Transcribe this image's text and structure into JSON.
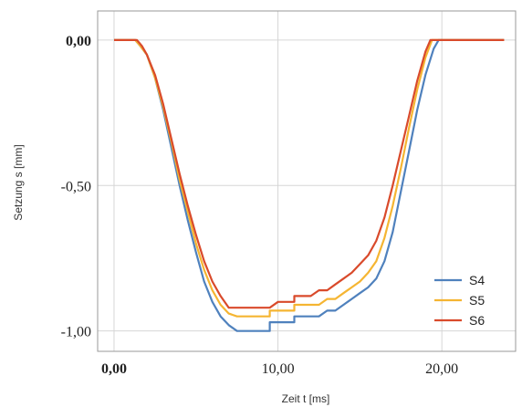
{
  "chart_data": {
    "type": "line",
    "xlabel": "Zeit t [ms]",
    "ylabel": "Setzung s [mm]",
    "xlim": [
      -1,
      24.5
    ],
    "ylim": [
      -1.07,
      0.1
    ],
    "x_ticks": [
      {
        "value": 0,
        "label": "0,00",
        "bold": true
      },
      {
        "value": 10,
        "label": "10,00",
        "bold": false
      },
      {
        "value": 20,
        "label": "20,00",
        "bold": false
      }
    ],
    "y_ticks": [
      {
        "value": 0,
        "label": "0,00",
        "bold": true
      },
      {
        "value": -0.5,
        "label": "-0,50",
        "bold": false
      },
      {
        "value": -1.0,
        "label": "-1,00",
        "bold": false
      }
    ],
    "grid": true,
    "legend_position": "bottom-right",
    "series": [
      {
        "name": "S4",
        "color": "#4f81bd",
        "points": [
          [
            0,
            0
          ],
          [
            1.3,
            0
          ],
          [
            1.6,
            -0.02
          ],
          [
            2.0,
            -0.05
          ],
          [
            2.5,
            -0.13
          ],
          [
            3.0,
            -0.24
          ],
          [
            3.5,
            -0.37
          ],
          [
            4.0,
            -0.5
          ],
          [
            4.5,
            -0.62
          ],
          [
            5.0,
            -0.73
          ],
          [
            5.5,
            -0.83
          ],
          [
            6.0,
            -0.9
          ],
          [
            6.5,
            -0.95
          ],
          [
            7.0,
            -0.98
          ],
          [
            7.5,
            -1.0
          ],
          [
            9.5,
            -1.0
          ],
          [
            9.5,
            -0.97
          ],
          [
            11.0,
            -0.97
          ],
          [
            11.0,
            -0.95
          ],
          [
            12.5,
            -0.95
          ],
          [
            13.0,
            -0.93
          ],
          [
            13.5,
            -0.93
          ],
          [
            14.0,
            -0.91
          ],
          [
            14.5,
            -0.89
          ],
          [
            15.0,
            -0.87
          ],
          [
            15.5,
            -0.85
          ],
          [
            16.0,
            -0.82
          ],
          [
            16.5,
            -0.76
          ],
          [
            17.0,
            -0.66
          ],
          [
            17.5,
            -0.52
          ],
          [
            18.0,
            -0.38
          ],
          [
            18.5,
            -0.24
          ],
          [
            19.0,
            -0.12
          ],
          [
            19.5,
            -0.03
          ],
          [
            19.8,
            0
          ],
          [
            23.8,
            0
          ]
        ]
      },
      {
        "name": "S5",
        "color": "#f5b532",
        "points": [
          [
            0,
            0
          ],
          [
            1.3,
            0
          ],
          [
            1.6,
            -0.02
          ],
          [
            2.0,
            -0.05
          ],
          [
            2.5,
            -0.13
          ],
          [
            3.0,
            -0.23
          ],
          [
            3.5,
            -0.35
          ],
          [
            4.0,
            -0.48
          ],
          [
            4.5,
            -0.59
          ],
          [
            5.0,
            -0.7
          ],
          [
            5.5,
            -0.79
          ],
          [
            6.0,
            -0.86
          ],
          [
            6.5,
            -0.91
          ],
          [
            7.0,
            -0.94
          ],
          [
            7.5,
            -0.95
          ],
          [
            9.5,
            -0.95
          ],
          [
            9.5,
            -0.93
          ],
          [
            11.0,
            -0.93
          ],
          [
            11.0,
            -0.91
          ],
          [
            12.5,
            -0.91
          ],
          [
            13.0,
            -0.89
          ],
          [
            13.5,
            -0.89
          ],
          [
            14.0,
            -0.87
          ],
          [
            14.5,
            -0.85
          ],
          [
            15.0,
            -0.83
          ],
          [
            15.5,
            -0.8
          ],
          [
            16.0,
            -0.76
          ],
          [
            16.5,
            -0.68
          ],
          [
            17.0,
            -0.57
          ],
          [
            17.5,
            -0.44
          ],
          [
            18.0,
            -0.3
          ],
          [
            18.5,
            -0.17
          ],
          [
            19.0,
            -0.06
          ],
          [
            19.4,
            0
          ],
          [
            23.8,
            0
          ]
        ]
      },
      {
        "name": "S6",
        "color": "#d94a2b",
        "points": [
          [
            0,
            0
          ],
          [
            1.4,
            0
          ],
          [
            1.7,
            -0.02
          ],
          [
            2.0,
            -0.05
          ],
          [
            2.5,
            -0.12
          ],
          [
            3.0,
            -0.22
          ],
          [
            3.5,
            -0.34
          ],
          [
            4.0,
            -0.46
          ],
          [
            4.5,
            -0.57
          ],
          [
            5.0,
            -0.67
          ],
          [
            5.5,
            -0.76
          ],
          [
            6.0,
            -0.83
          ],
          [
            6.5,
            -0.88
          ],
          [
            7.0,
            -0.92
          ],
          [
            9.5,
            -0.92
          ],
          [
            10.0,
            -0.9
          ],
          [
            11.0,
            -0.9
          ],
          [
            11.0,
            -0.88
          ],
          [
            12.0,
            -0.88
          ],
          [
            12.5,
            -0.86
          ],
          [
            13.0,
            -0.86
          ],
          [
            13.5,
            -0.84
          ],
          [
            14.0,
            -0.82
          ],
          [
            14.5,
            -0.8
          ],
          [
            15.0,
            -0.77
          ],
          [
            15.5,
            -0.74
          ],
          [
            16.0,
            -0.69
          ],
          [
            16.5,
            -0.61
          ],
          [
            17.0,
            -0.5
          ],
          [
            17.5,
            -0.38
          ],
          [
            18.0,
            -0.26
          ],
          [
            18.5,
            -0.14
          ],
          [
            19.0,
            -0.04
          ],
          [
            19.3,
            0
          ],
          [
            23.8,
            0
          ]
        ]
      }
    ]
  }
}
